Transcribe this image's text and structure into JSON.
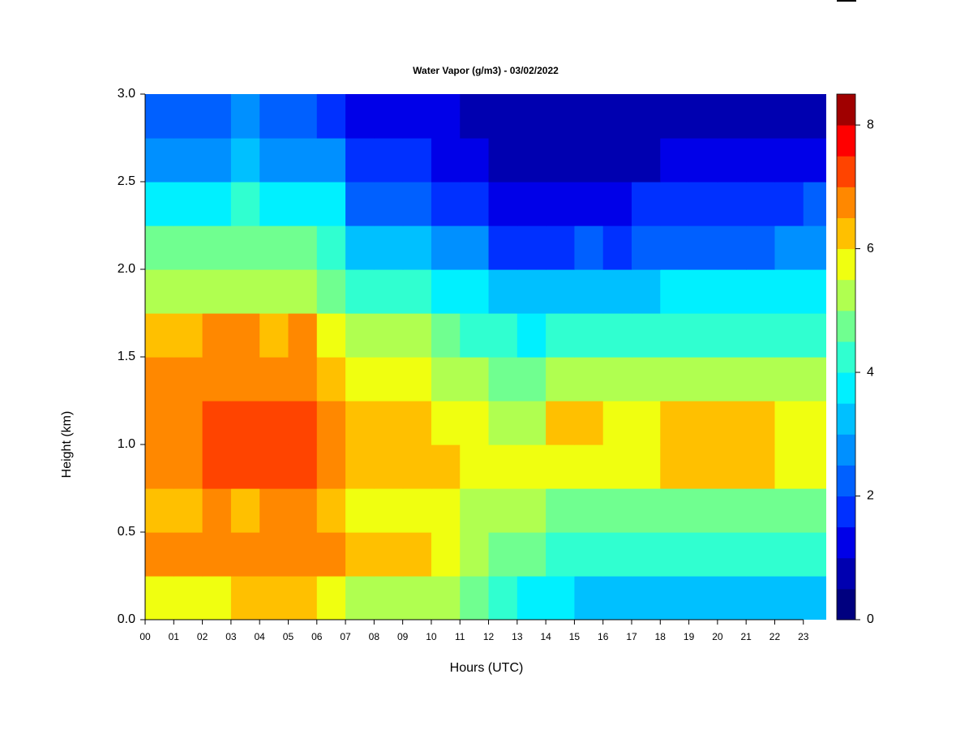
{
  "chart_data": {
    "type": "heatmap",
    "title": "Water Vapor (g/m3) - 03/02/2022",
    "xlabel": "Hours (UTC)",
    "ylabel": "Height (km)",
    "x": [
      0.5,
      1.5,
      2.5,
      3.5,
      4.5,
      5.5,
      6.5,
      7.5,
      8.5,
      9.5,
      10.5,
      11.5,
      12.5,
      13.5,
      14.5,
      15.5,
      16.5,
      17.5,
      18.5,
      19.5,
      20.5,
      21.5,
      22.5,
      23.5
    ],
    "y": [
      0.125,
      0.375,
      0.625,
      0.875,
      1.125,
      1.375,
      1.625,
      1.875,
      2.125,
      2.375,
      2.625,
      2.875
    ],
    "z": [
      [
        5.5,
        5.5,
        5.5,
        6,
        6,
        6,
        5.5,
        5,
        5,
        5,
        5,
        4.5,
        4,
        3.5,
        3.5,
        3,
        3,
        3,
        3,
        3,
        3,
        3,
        3,
        3
      ],
      [
        6.5,
        6.5,
        6.5,
        6.5,
        6.5,
        6.5,
        6.5,
        6,
        6,
        6,
        5.5,
        5,
        4.5,
        4.5,
        4,
        4,
        4,
        4,
        4,
        4,
        4,
        4,
        4,
        4
      ],
      [
        6,
        6,
        6.5,
        6,
        6.5,
        6.5,
        6,
        5.5,
        5.5,
        5.5,
        5.5,
        5,
        5,
        5,
        4.5,
        4.5,
        4.5,
        4.5,
        4.5,
        4.5,
        4.5,
        4.5,
        4.5,
        4.5
      ],
      [
        6.5,
        6.5,
        7,
        7,
        7,
        7,
        6.5,
        6,
        6,
        6,
        6,
        5.5,
        5.5,
        5.5,
        5.5,
        5.5,
        5.5,
        5.5,
        6,
        6,
        6,
        6,
        5.5,
        5.5
      ],
      [
        6.5,
        6.5,
        7,
        7,
        7,
        7,
        6.5,
        6,
        6,
        6,
        5.5,
        5.5,
        5,
        5,
        6,
        6,
        5.5,
        5.5,
        6,
        6,
        6,
        6,
        5.5,
        5.5
      ],
      [
        6.5,
        6.5,
        6.5,
        6.5,
        6.5,
        6.5,
        6,
        5.5,
        5.5,
        5.5,
        5,
        5,
        4.5,
        4.5,
        5,
        5,
        5,
        5,
        5,
        5,
        5,
        5,
        5,
        5
      ],
      [
        6,
        6,
        6.5,
        6.5,
        6,
        6.5,
        5.5,
        5,
        5,
        5,
        4.5,
        4,
        4,
        3.5,
        4,
        4,
        4,
        4,
        4,
        4,
        4,
        4,
        4,
        4
      ],
      [
        5,
        5,
        5,
        5,
        5,
        5,
        4.5,
        4,
        4,
        4,
        3.5,
        3.5,
        3,
        3,
        3,
        3,
        3,
        3,
        3.5,
        3.5,
        3.5,
        3.5,
        3.5,
        3.5
      ],
      [
        4.5,
        4.5,
        4.5,
        4.5,
        4.5,
        4.5,
        4,
        3,
        3,
        3,
        2.5,
        2.5,
        1.5,
        1.5,
        1.5,
        2,
        1.5,
        2,
        2,
        2,
        2,
        2,
        2.5,
        2.5
      ],
      [
        3.5,
        3.5,
        3.5,
        4,
        3.5,
        3.5,
        3.5,
        2,
        2,
        2,
        1.5,
        1.5,
        1,
        1,
        1,
        1,
        1,
        1.5,
        1.5,
        1.5,
        1.5,
        1.5,
        1.5,
        2
      ],
      [
        2.5,
        2.5,
        2.5,
        3,
        2.5,
        2.5,
        2.5,
        1.5,
        1.5,
        1.5,
        1,
        1,
        0.5,
        0.5,
        0.5,
        0.5,
        0.5,
        0.5,
        1,
        1,
        1,
        1,
        1,
        1
      ],
      [
        2,
        2,
        2,
        2.5,
        2,
        2,
        1.5,
        1,
        1,
        1,
        1,
        0.5,
        0.5,
        0.5,
        0.5,
        0.5,
        0.5,
        0.5,
        0.5,
        0.5,
        0.5,
        0.5,
        0.5,
        0.5
      ]
    ],
    "xlim": [
      0,
      23.8
    ],
    "xticks": [
      {
        "value": 0,
        "label": "00"
      },
      {
        "value": 1,
        "label": "01"
      },
      {
        "value": 2,
        "label": "02"
      },
      {
        "value": 3,
        "label": "03"
      },
      {
        "value": 4,
        "label": "04"
      },
      {
        "value": 5,
        "label": "05"
      },
      {
        "value": 6,
        "label": "06"
      },
      {
        "value": 7,
        "label": "07"
      },
      {
        "value": 8,
        "label": "08"
      },
      {
        "value": 9,
        "label": "09"
      },
      10,
      11,
      12,
      13,
      14,
      15,
      16,
      17,
      18,
      19,
      20,
      21,
      22,
      23
    ],
    "ylim": [
      0,
      3
    ],
    "yticks": [
      {
        "value": 0,
        "label": "0.0"
      },
      {
        "value": 0.5,
        "label": "0.5"
      },
      {
        "value": 1,
        "label": "1.0"
      },
      {
        "value": 1.5,
        "label": "1.5"
      },
      {
        "value": 2,
        "label": "2.0"
      },
      {
        "value": 2.5,
        "label": "2.5"
      },
      {
        "value": 3,
        "label": "3.0"
      }
    ],
    "zlim": [
      0,
      8.5
    ],
    "zticks": [
      0,
      2,
      4,
      6,
      8
    ],
    "colors": [
      "#00007f",
      "#0000b0",
      "#0000e8",
      "#0030ff",
      "#0060ff",
      "#0090ff",
      "#00c0ff",
      "#00f0ff",
      "#30ffd0",
      "#70ff90",
      "#b0ff50",
      "#f0ff10",
      "#ffc000",
      "#ff8800",
      "#ff4400",
      "#ff0000",
      "#a00000"
    ]
  }
}
